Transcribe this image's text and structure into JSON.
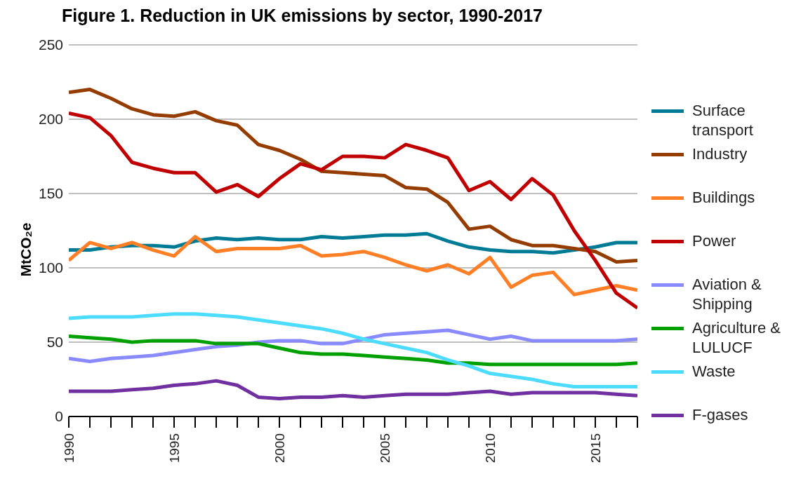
{
  "chart_data": {
    "type": "line",
    "title": "Figure 1. Reduction in UK emissions by sector, 1990-2017",
    "ylabel": "MtCO₂e",
    "x": [
      1990,
      1991,
      1992,
      1993,
      1994,
      1995,
      1996,
      1997,
      1998,
      1999,
      2000,
      2001,
      2002,
      2003,
      2004,
      2005,
      2006,
      2007,
      2008,
      2009,
      2010,
      2011,
      2012,
      2013,
      2014,
      2015,
      2016,
      2017
    ],
    "series": [
      {
        "name": "Surface transport",
        "color": "#007b96",
        "values": [
          112,
          112,
          114,
          115,
          115,
          114,
          118,
          120,
          119,
          120,
          119,
          119,
          121,
          120,
          121,
          122,
          122,
          123,
          118,
          114,
          112,
          111,
          111,
          110,
          112,
          114,
          117,
          117
        ]
      },
      {
        "name": "Industry",
        "color": "#953d00",
        "values": [
          218,
          220,
          214,
          207,
          203,
          202,
          205,
          199,
          196,
          183,
          179,
          173,
          165,
          164,
          163,
          162,
          154,
          153,
          144,
          126,
          128,
          119,
          115,
          115,
          113,
          111,
          104,
          105
        ]
      },
      {
        "name": "Buildings",
        "color": "#ff7f27",
        "values": [
          105,
          117,
          113,
          117,
          112,
          108,
          121,
          111,
          113,
          113,
          113,
          115,
          108,
          109,
          111,
          107,
          102,
          98,
          102,
          96,
          107,
          87,
          95,
          97,
          82,
          85,
          88,
          85
        ]
      },
      {
        "name": "Power",
        "color": "#c00000",
        "values": [
          204,
          201,
          189,
          171,
          167,
          164,
          164,
          151,
          156,
          148,
          160,
          170,
          166,
          175,
          175,
          174,
          183,
          179,
          174,
          152,
          158,
          146,
          160,
          149,
          125,
          105,
          83,
          73
        ]
      },
      {
        "name": "Aviation & Shipping",
        "color": "#8a8aff",
        "values": [
          39,
          37,
          39,
          40,
          41,
          43,
          45,
          47,
          48,
          50,
          51,
          51,
          49,
          49,
          52,
          55,
          56,
          57,
          58,
          55,
          52,
          54,
          51,
          51,
          51,
          51,
          51,
          52
        ]
      },
      {
        "name": "Agriculture & LULUCF",
        "color": "#00a000",
        "values": [
          54,
          53,
          52,
          50,
          51,
          51,
          51,
          49,
          49,
          49,
          46,
          43,
          42,
          42,
          41,
          40,
          39,
          38,
          36,
          36,
          35,
          35,
          35,
          35,
          35,
          35,
          35,
          36
        ]
      },
      {
        "name": "Waste",
        "color": "#4cdcff",
        "values": [
          66,
          67,
          67,
          67,
          68,
          69,
          69,
          68,
          67,
          65,
          63,
          61,
          59,
          56,
          52,
          49,
          46,
          43,
          38,
          34,
          29,
          27,
          25,
          22,
          20,
          20,
          20,
          20
        ]
      },
      {
        "name": "F-gases",
        "color": "#7030a0",
        "values": [
          17,
          17,
          17,
          18,
          19,
          21,
          22,
          24,
          21,
          13,
          12,
          13,
          13,
          14,
          13,
          14,
          15,
          15,
          15,
          16,
          17,
          15,
          16,
          16,
          16,
          16,
          15,
          14
        ]
      }
    ],
    "xlim": [
      1990,
      2017
    ],
    "xticks": [
      1990,
      {
        "value": 1991,
        "label": null
      },
      {
        "value": 1992,
        "label": null
      },
      {
        "value": 1993,
        "label": null
      },
      {
        "value": 1994,
        "label": null
      },
      1995,
      {
        "value": 1996,
        "label": null
      },
      {
        "value": 1997,
        "label": null
      },
      {
        "value": 1998,
        "label": null
      },
      {
        "value": 1999,
        "label": null
      },
      2000,
      {
        "value": 2001,
        "label": null
      },
      {
        "value": 2002,
        "label": null
      },
      {
        "value": 2003,
        "label": null
      },
      {
        "value": 2004,
        "label": null
      },
      2005,
      {
        "value": 2006,
        "label": null
      },
      {
        "value": 2007,
        "label": null
      },
      {
        "value": 2008,
        "label": null
      },
      {
        "value": 2009,
        "label": null
      },
      2010,
      {
        "value": 2011,
        "label": null
      },
      {
        "value": 2012,
        "label": null
      },
      {
        "value": 2013,
        "label": null
      },
      {
        "value": 2014,
        "label": null
      },
      2015,
      {
        "value": 2016,
        "label": null
      },
      {
        "value": 2017,
        "label": null
      }
    ],
    "ylim": [
      0,
      250
    ],
    "yticks": [
      0,
      50,
      100,
      150,
      200,
      250
    ],
    "grid": "y",
    "legend": "right",
    "marker": "none",
    "line_style": "solid"
  }
}
